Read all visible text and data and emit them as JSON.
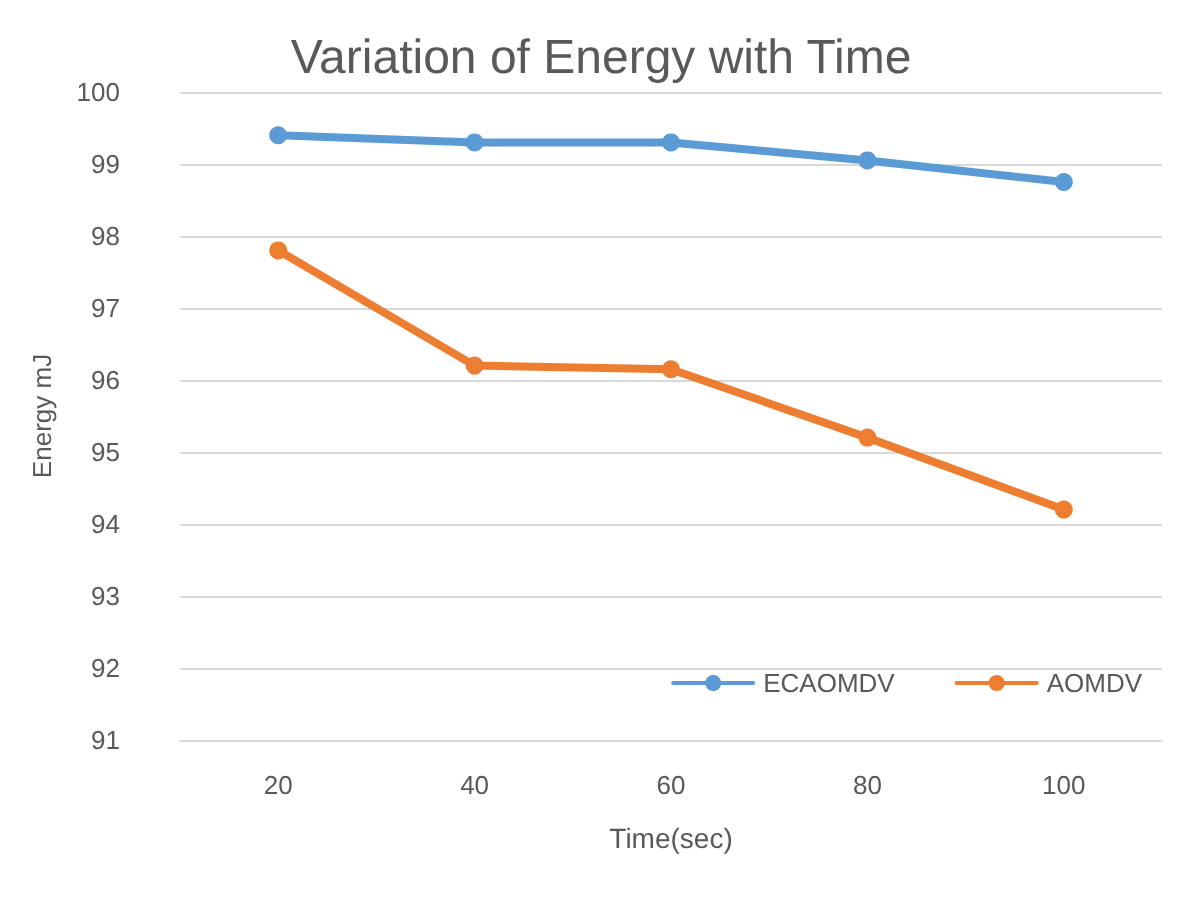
{
  "chart_data": {
    "type": "line",
    "title": "Variation of Energy with Time",
    "xlabel": "Time(sec)",
    "ylabel": "Energy mJ",
    "categories": [
      "20",
      "40",
      "60",
      "80",
      "100"
    ],
    "series": [
      {
        "name": "ECAOMDV",
        "color": "#5b9bd5",
        "values": [
          99.4,
          99.3,
          99.3,
          99.05,
          98.75
        ]
      },
      {
        "name": "AOMDV",
        "color": "#ed7d31",
        "values": [
          97.8,
          96.2,
          96.15,
          95.2,
          94.2
        ]
      }
    ],
    "ylim": [
      91,
      100
    ],
    "yticks": [
      91,
      92,
      93,
      94,
      95,
      96,
      97,
      98,
      99,
      100
    ],
    "grid": "y",
    "legend": "bottom right",
    "marker": "circle",
    "line_style": "solid"
  }
}
